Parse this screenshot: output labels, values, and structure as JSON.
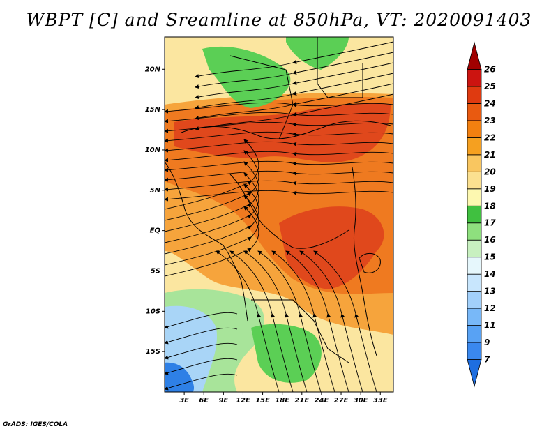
{
  "title": "WBPT [C] and Sreamline at 850hPa, VT: 2020091403",
  "credit": "GrADS: IGES/COLA",
  "map": {
    "lon_range": [
      0,
      35
    ],
    "lat_range": [
      -20,
      24
    ],
    "lat_ticks": [
      {
        "value": 20,
        "label": "20N"
      },
      {
        "value": 15,
        "label": "15N"
      },
      {
        "value": 10,
        "label": "10N"
      },
      {
        "value": 5,
        "label": "5N"
      },
      {
        "value": 0,
        "label": "EQ"
      },
      {
        "value": -5,
        "label": "5S"
      },
      {
        "value": -10,
        "label": "10S"
      },
      {
        "value": -15,
        "label": "15S"
      }
    ],
    "lon_ticks": [
      {
        "value": 3,
        "label": "3E"
      },
      {
        "value": 6,
        "label": "6E"
      },
      {
        "value": 9,
        "label": "9E"
      },
      {
        "value": 12,
        "label": "12E"
      },
      {
        "value": 15,
        "label": "15E"
      },
      {
        "value": 18,
        "label": "18E"
      },
      {
        "value": 21,
        "label": "21E"
      },
      {
        "value": 24,
        "label": "24E"
      },
      {
        "value": 27,
        "label": "27E"
      },
      {
        "value": 30,
        "label": "30E"
      },
      {
        "value": 33,
        "label": "33E"
      }
    ]
  },
  "colorbar": {
    "levels": [
      "7",
      "9",
      "11",
      "12",
      "13",
      "14",
      "15",
      "16",
      "17",
      "18",
      "19",
      "20",
      "21",
      "22",
      "23",
      "24",
      "25",
      "26"
    ],
    "colors": [
      "#1e6ee0",
      "#3a88ee",
      "#58a2f4",
      "#78b8f8",
      "#a2d0fb",
      "#c8e6fd",
      "#e6f7fc",
      "#c8f0c0",
      "#8ee07e",
      "#40c040",
      "#fdf8b0",
      "#fbe090",
      "#f9c660",
      "#f5a020",
      "#f28010",
      "#e95a10",
      "#df3a10",
      "#cc1410",
      "#a00000"
    ]
  },
  "fill_colors": {
    "cold": "#2e80e6",
    "cool": "#a9d5f7",
    "green": "#5bcf55",
    "lightgreen": "#a8e49a",
    "yellow": "#fbe6a0",
    "orange": "#f6a43c",
    "deep_orange": "#ef7a20",
    "red": "#e0481c"
  }
}
